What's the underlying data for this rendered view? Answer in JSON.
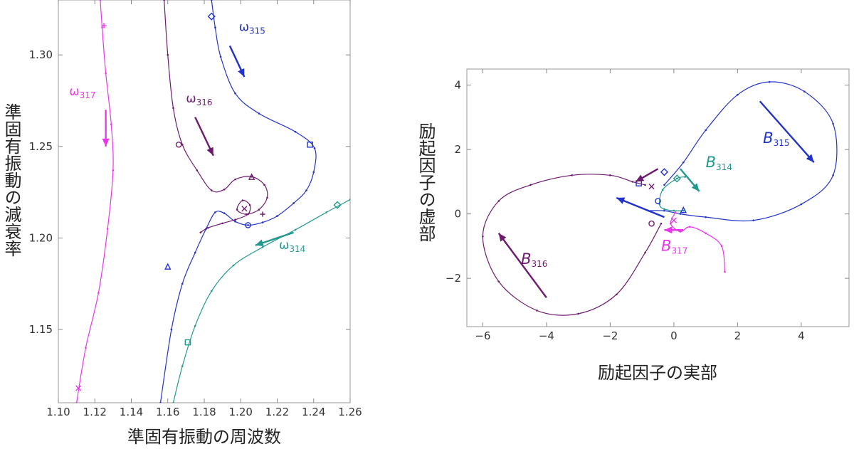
{
  "chart_data": [
    {
      "type": "line",
      "xlabel": "準固有振動の周波数",
      "ylabel": "準固有振動の減衰率",
      "xlim": [
        1.1,
        1.26
      ],
      "ylim": [
        1.11,
        1.33
      ],
      "xticks": [
        "1.10",
        "1.12",
        "1.14",
        "1.16",
        "1.18",
        "1.20",
        "1.22",
        "1.24",
        "1.26"
      ],
      "yticks": [
        "1.15",
        "1.20",
        "1.25",
        "1.30"
      ],
      "series": [
        {
          "name": "ω315",
          "label_main": "ω",
          "label_sub": "315",
          "color": "#2233cc",
          "points": [
            [
              1.156,
              1.11
            ],
            [
              1.162,
              1.15
            ],
            [
              1.168,
              1.175
            ],
            [
              1.175,
              1.192
            ],
            [
              1.181,
              1.205
            ],
            [
              1.186,
              1.214
            ],
            [
              1.191,
              1.2135
            ],
            [
              1.197,
              1.209
            ],
            [
              1.204,
              1.207
            ],
            [
              1.212,
              1.2085
            ],
            [
              1.22,
              1.212
            ],
            [
              1.229,
              1.219
            ],
            [
              1.236,
              1.226
            ],
            [
              1.24,
              1.236
            ],
            [
              1.2405,
              1.249
            ],
            [
              1.23,
              1.258
            ],
            [
              1.21,
              1.268
            ],
            [
              1.197,
              1.279
            ],
            [
              1.189,
              1.299
            ],
            [
              1.186,
              1.315
            ],
            [
              1.184,
              1.33
            ]
          ]
        },
        {
          "name": "ω314",
          "label_main": "ω",
          "label_sub": "314",
          "color": "#22998f",
          "points": [
            [
              1.163,
              1.11
            ],
            [
              1.168,
              1.13
            ],
            [
              1.175,
              1.152
            ],
            [
              1.184,
              1.171
            ],
            [
              1.196,
              1.185
            ],
            [
              1.212,
              1.195
            ],
            [
              1.23,
              1.2045
            ],
            [
              1.247,
              1.214
            ],
            [
              1.26,
              1.221
            ]
          ]
        },
        {
          "name": "ω316",
          "label_main": "ω",
          "label_sub": "316",
          "color": "#6e1a70",
          "points": [
            [
              1.158,
              1.33
            ],
            [
              1.16,
              1.3
            ],
            [
              1.163,
              1.271
            ],
            [
              1.168,
              1.251
            ],
            [
              1.176,
              1.237
            ],
            [
              1.184,
              1.226
            ],
            [
              1.191,
              1.2265
            ],
            [
              1.197,
              1.232
            ],
            [
              1.206,
              1.2335
            ],
            [
              1.213,
              1.229
            ],
            [
              1.2145,
              1.222
            ],
            [
              1.21,
              1.2155
            ],
            [
              1.203,
              1.213
            ],
            [
              1.198,
              1.2155
            ],
            [
              1.201,
              1.2205
            ],
            [
              1.205,
              1.218
            ],
            [
              1.204,
              1.213
            ],
            [
              1.197,
              1.21
            ],
            [
              1.19,
              1.208
            ],
            [
              1.182,
              1.2055
            ],
            [
              1.178,
              1.203
            ]
          ]
        },
        {
          "name": "ω317",
          "label_main": "ω",
          "label_sub": "317",
          "color": "#ee33ee",
          "points": [
            [
              1.11,
              1.11
            ],
            [
              1.115,
              1.14
            ],
            [
              1.122,
              1.17
            ],
            [
              1.127,
              1.205
            ],
            [
              1.13,
              1.237
            ],
            [
              1.129,
              1.262
            ],
            [
              1.126,
              1.29
            ],
            [
              1.124,
              1.315
            ],
            [
              1.123,
              1.33
            ]
          ]
        }
      ],
      "markers": [
        {
          "series": "ω315",
          "shape": "diamond",
          "x": 1.184,
          "y": 1.321
        },
        {
          "series": "ω315",
          "shape": "square",
          "x": 1.238,
          "y": 1.251
        },
        {
          "series": "ω315",
          "shape": "circle",
          "x": 1.204,
          "y": 1.207
        },
        {
          "series": "ω315",
          "shape": "triangle",
          "x": 1.16,
          "y": 1.184
        },
        {
          "series": "ω314",
          "shape": "diamond",
          "x": 1.253,
          "y": 1.218
        },
        {
          "series": "ω314",
          "shape": "square",
          "x": 1.171,
          "y": 1.143
        },
        {
          "series": "ω316",
          "shape": "circle",
          "x": 1.166,
          "y": 1.251
        },
        {
          "series": "ω316",
          "shape": "triangle",
          "x": 1.206,
          "y": 1.233
        },
        {
          "series": "ω316",
          "shape": "cross",
          "x": 1.202,
          "y": 1.216
        },
        {
          "series": "ω316",
          "shape": "plus",
          "x": 1.212,
          "y": 1.213
        },
        {
          "series": "ω317",
          "shape": "plus",
          "x": 1.125,
          "y": 1.316
        },
        {
          "series": "ω317",
          "shape": "cross",
          "x": 1.111,
          "y": 1.118
        }
      ],
      "arrows": [
        {
          "series": "ω315",
          "from": [
            1.194,
            1.305
          ],
          "to": [
            1.202,
            1.288
          ]
        },
        {
          "series": "ω314",
          "from": [
            1.229,
            1.203
          ],
          "to": [
            1.208,
            1.196
          ]
        },
        {
          "series": "ω316",
          "from": [
            1.175,
            1.266
          ],
          "to": [
            1.185,
            1.245
          ]
        },
        {
          "series": "ω317",
          "from": [
            1.126,
            1.27
          ],
          "to": [
            1.126,
            1.25
          ]
        }
      ],
      "labels": [
        {
          "series": "ω315",
          "x": 1.199,
          "y": 1.313
        },
        {
          "series": "ω314",
          "x": 1.221,
          "y": 1.194
        },
        {
          "series": "ω316",
          "x": 1.17,
          "y": 1.274
        },
        {
          "series": "ω317",
          "x": 1.106,
          "y": 1.278
        }
      ]
    },
    {
      "type": "line",
      "xlabel": "励起因子の実部",
      "ylabel": "励起因子の虚部",
      "xlim": [
        -6.5,
        5.5
      ],
      "ylim": [
        -3.5,
        4.5
      ],
      "xticks": [
        "−6",
        "−4",
        "−2",
        "0",
        "2",
        "4"
      ],
      "yticks": [
        "−2",
        "0",
        "2",
        "4"
      ],
      "series": [
        {
          "name": "B315",
          "label_main": "B",
          "label_sub": "315",
          "color": "#2233cc",
          "points": [
            [
              -0.3,
              0.9
            ],
            [
              0.3,
              1.6
            ],
            [
              1.0,
              2.6
            ],
            [
              2.0,
              3.7
            ],
            [
              3.0,
              4.1
            ],
            [
              4.1,
              3.8
            ],
            [
              5.0,
              2.8
            ],
            [
              5.0,
              1.2
            ],
            [
              4.0,
              0.3
            ],
            [
              2.5,
              -0.2
            ],
            [
              1.0,
              -0.1
            ],
            [
              0.2,
              0.0
            ],
            [
              -0.3,
              0.1
            ],
            [
              -0.8,
              0.1
            ]
          ]
        },
        {
          "name": "B316",
          "label_main": "B",
          "label_sub": "316",
          "color": "#6e1a70",
          "points": [
            [
              -0.4,
              -0.3
            ],
            [
              -0.9,
              -1.2
            ],
            [
              -1.8,
              -2.5
            ],
            [
              -3.0,
              -3.1
            ],
            [
              -4.3,
              -3.0
            ],
            [
              -5.5,
              -2.1
            ],
            [
              -6.0,
              -0.7
            ],
            [
              -5.5,
              0.4
            ],
            [
              -4.5,
              0.9
            ],
            [
              -3.2,
              1.2
            ],
            [
              -2.0,
              1.2
            ],
            [
              -1.3,
              1.0
            ],
            [
              -0.9,
              0.9
            ]
          ]
        },
        {
          "name": "B314",
          "label_main": "B",
          "label_sub": "314",
          "color": "#22998f",
          "points": [
            [
              0.35,
              1.15
            ],
            [
              0.1,
              1.1
            ],
            [
              -0.35,
              0.75
            ],
            [
              -0.45,
              0.3
            ],
            [
              -0.3,
              0.15
            ],
            [
              0.0,
              0.1
            ],
            [
              0.3,
              0.1
            ]
          ]
        },
        {
          "name": "B317",
          "label_main": "B",
          "label_sub": "317",
          "color": "#ee33ee",
          "points": [
            [
              0.05,
              0.05
            ],
            [
              -0.1,
              -0.3
            ],
            [
              0.2,
              -0.55
            ],
            [
              0.5,
              -0.4
            ],
            [
              1.0,
              -0.6
            ],
            [
              1.5,
              -1.0
            ],
            [
              1.6,
              -1.8
            ]
          ]
        }
      ],
      "markers": [
        {
          "series": "B315",
          "shape": "diamond",
          "x": -0.3,
          "y": 1.3
        },
        {
          "series": "B315",
          "shape": "square",
          "x": -1.1,
          "y": 0.95
        },
        {
          "series": "B315",
          "shape": "circle",
          "x": -0.5,
          "y": 0.4
        },
        {
          "series": "B315",
          "shape": "triangle",
          "x": 0.3,
          "y": 0.1
        },
        {
          "series": "B314",
          "shape": "diamond",
          "x": 0.1,
          "y": 1.1
        },
        {
          "series": "B316",
          "shape": "circle",
          "x": -0.7,
          "y": -0.3
        },
        {
          "series": "B316",
          "shape": "cross",
          "x": -0.7,
          "y": 0.85
        },
        {
          "series": "B317",
          "shape": "cross",
          "x": 0.0,
          "y": -0.2
        }
      ],
      "arrows": [
        {
          "series": "B315",
          "from": [
            2.7,
            3.5
          ],
          "to": [
            4.4,
            1.6
          ]
        },
        {
          "series": "B316",
          "from": [
            -4.0,
            -2.6
          ],
          "to": [
            -5.5,
            -0.6
          ]
        },
        {
          "series": "B314",
          "from": [
            0.2,
            1.4
          ],
          "to": [
            0.8,
            0.7
          ]
        },
        {
          "series": "B315",
          "from": [
            -0.3,
            -0.1
          ],
          "to": [
            -1.8,
            0.5
          ]
        },
        {
          "series": "B316",
          "from": [
            -0.5,
            1.4
          ],
          "to": [
            -1.2,
            1.0
          ]
        },
        {
          "series": "B317",
          "from": [
            0.3,
            -0.5
          ],
          "to": [
            -0.3,
            -0.5
          ]
        }
      ],
      "labels": [
        {
          "series": "B315",
          "x": 2.8,
          "y": 2.2
        },
        {
          "series": "B314",
          "x": 1.0,
          "y": 1.45
        },
        {
          "series": "B316",
          "x": -4.8,
          "y": -1.55
        },
        {
          "series": "B317",
          "x": -0.4,
          "y": -1.15
        }
      ]
    }
  ]
}
